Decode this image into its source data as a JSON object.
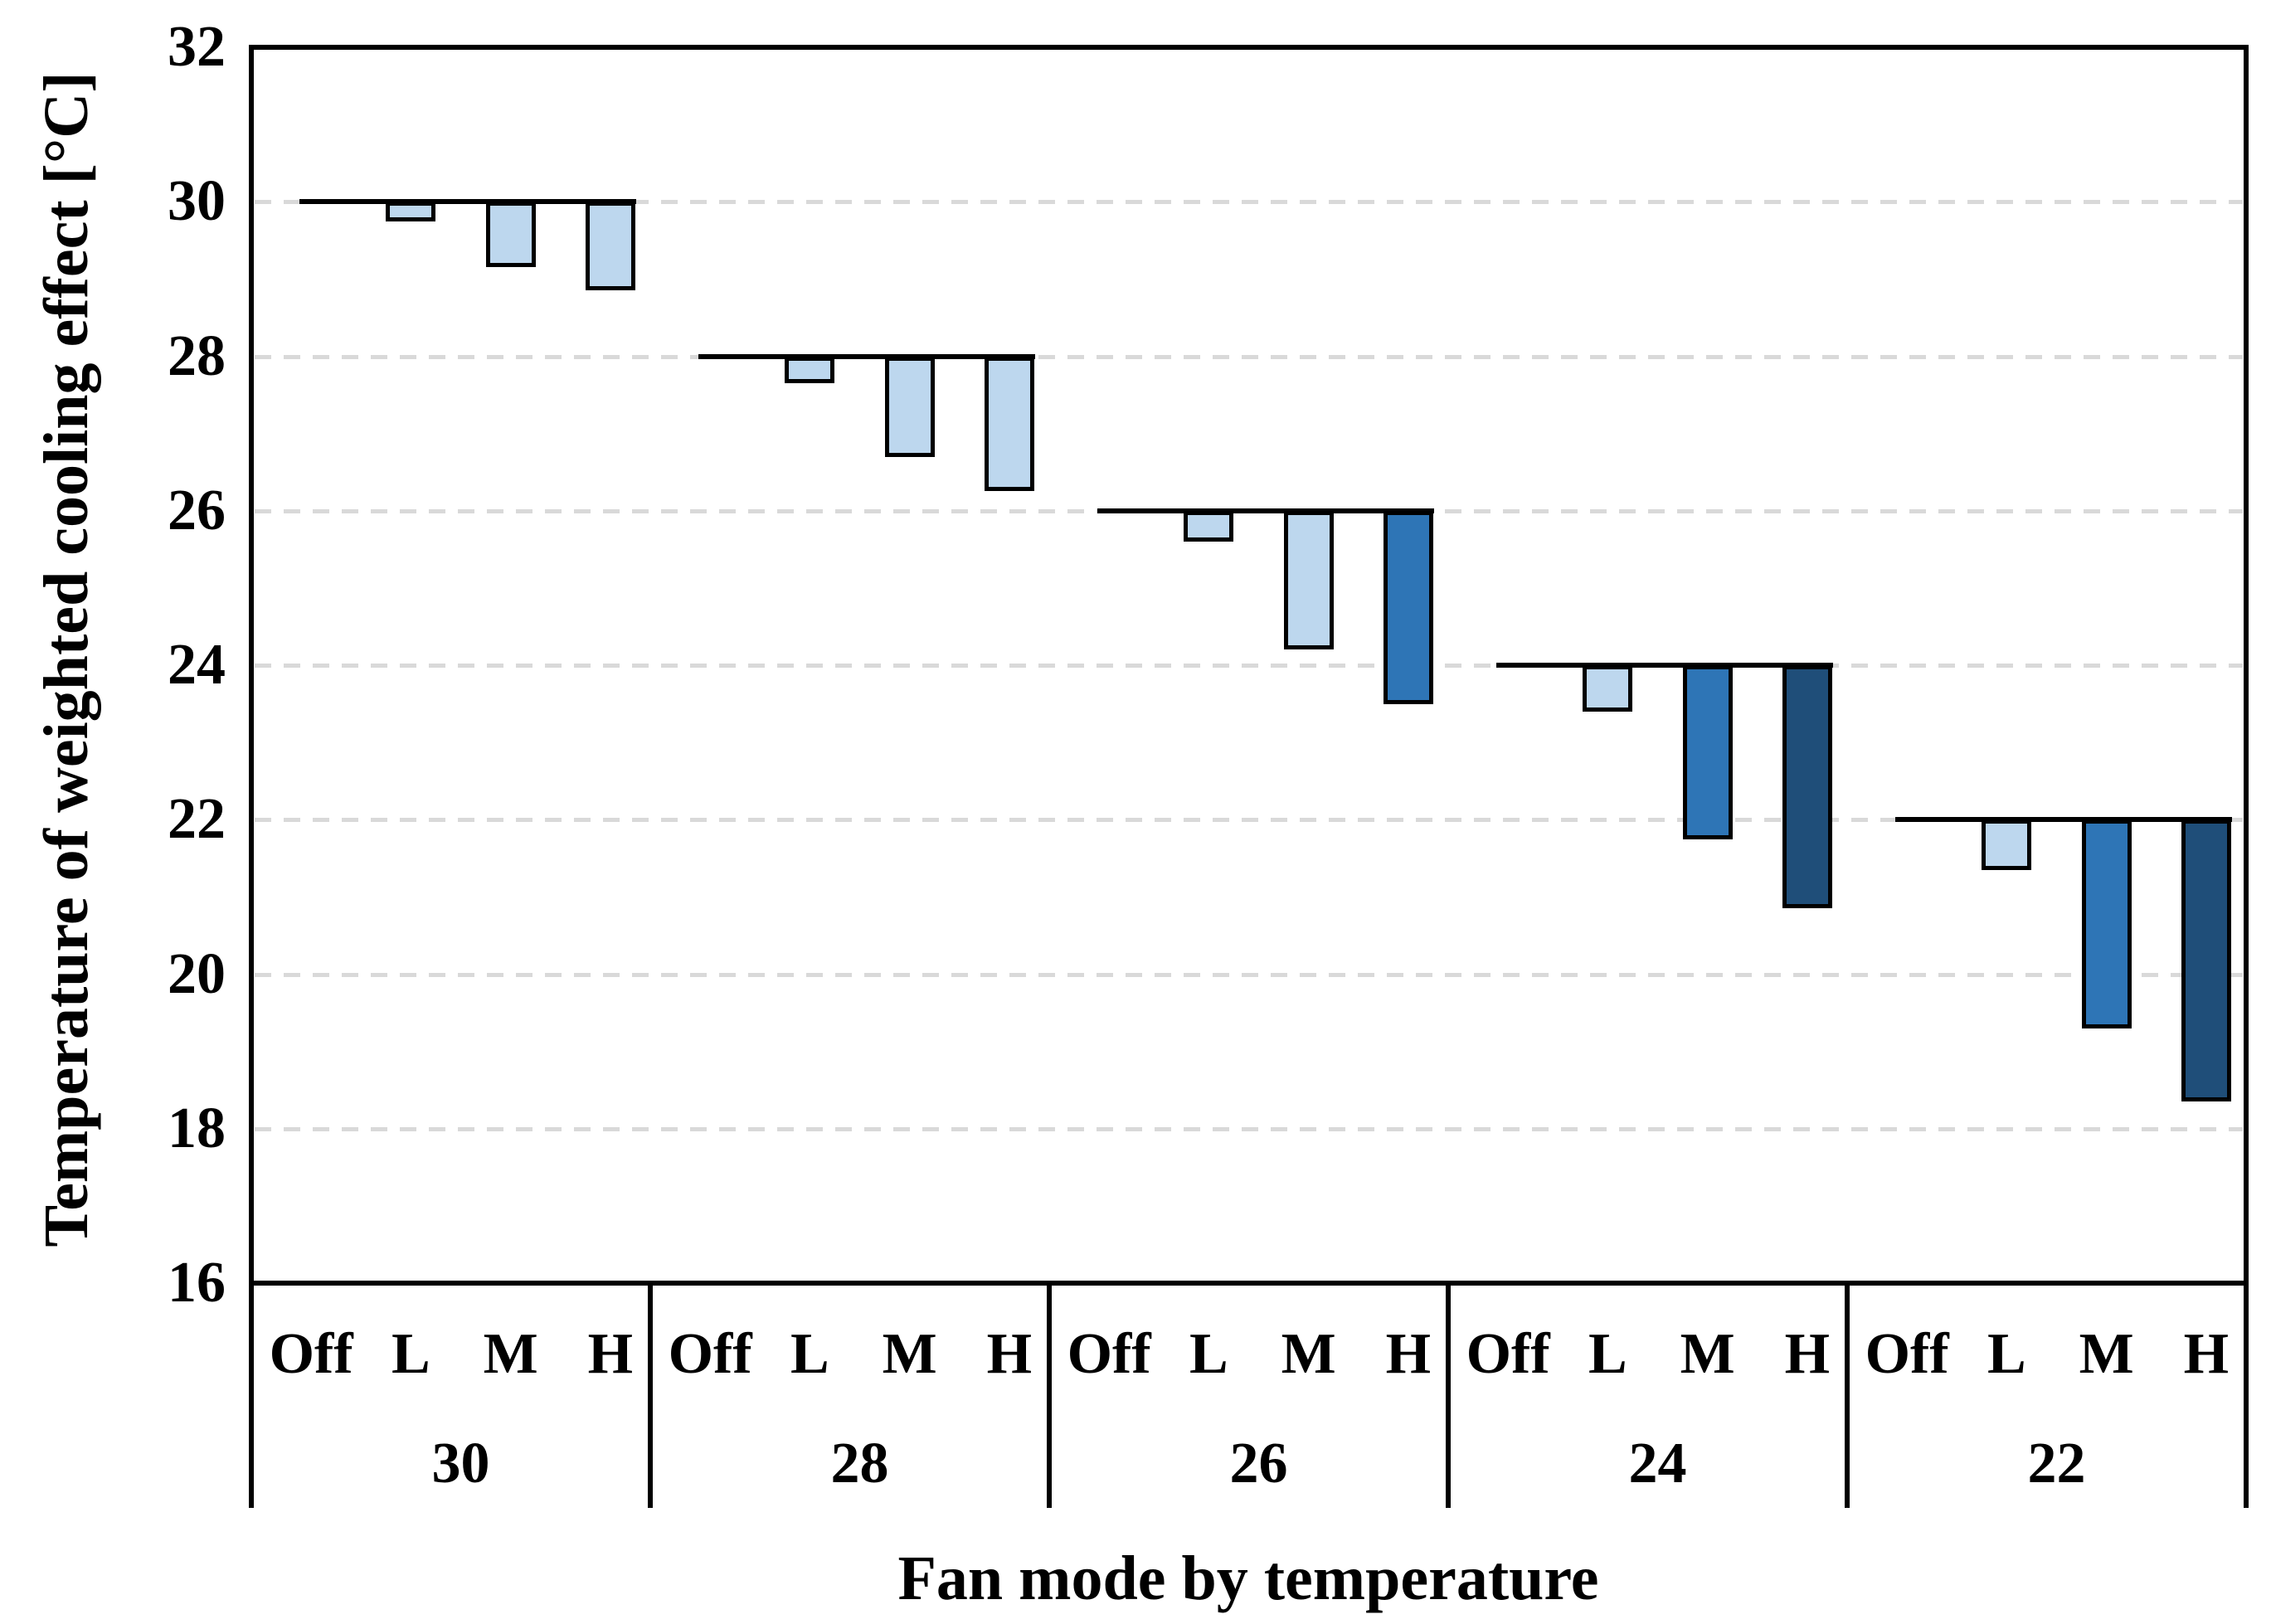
{
  "chart_data": {
    "type": "bar",
    "title": "",
    "xlabel": "Fan mode by temperature",
    "ylabel": "Temperature of weighted cooling effect [°C]",
    "ylim": [
      16,
      32
    ],
    "yticks": [
      16,
      18,
      20,
      22,
      24,
      26,
      28,
      30,
      32
    ],
    "grid": "horizontal-dashed",
    "legend": "none",
    "bar_direction": "down-from-group-baseline",
    "mode_labels": [
      "Off",
      "L",
      "M",
      "H"
    ],
    "groups": [
      {
        "label": "30",
        "baseline": 30,
        "values": [
          30,
          29.75,
          29.15,
          28.85
        ],
        "colors": [
          "none",
          "light",
          "light",
          "light"
        ]
      },
      {
        "label": "28",
        "baseline": 28,
        "values": [
          28,
          27.65,
          26.7,
          26.25
        ],
        "colors": [
          "none",
          "light",
          "light",
          "light"
        ]
      },
      {
        "label": "26",
        "baseline": 26,
        "values": [
          26,
          25.6,
          24.2,
          23.5
        ],
        "colors": [
          "none",
          "light",
          "light",
          "medium"
        ]
      },
      {
        "label": "24",
        "baseline": 24,
        "values": [
          24,
          23.4,
          21.75,
          20.85
        ],
        "colors": [
          "none",
          "light",
          "medium",
          "dark"
        ]
      },
      {
        "label": "22",
        "baseline": 22,
        "values": [
          22,
          21.35,
          19.3,
          18.35
        ],
        "colors": [
          "none",
          "light",
          "medium",
          "dark"
        ]
      }
    ],
    "palette": {
      "light": "#BDD7EE",
      "medium": "#2E75B6",
      "dark": "#1F4E79",
      "bar_border": "#000000",
      "gridline": "#D9D9D9",
      "axis": "#000000"
    }
  }
}
